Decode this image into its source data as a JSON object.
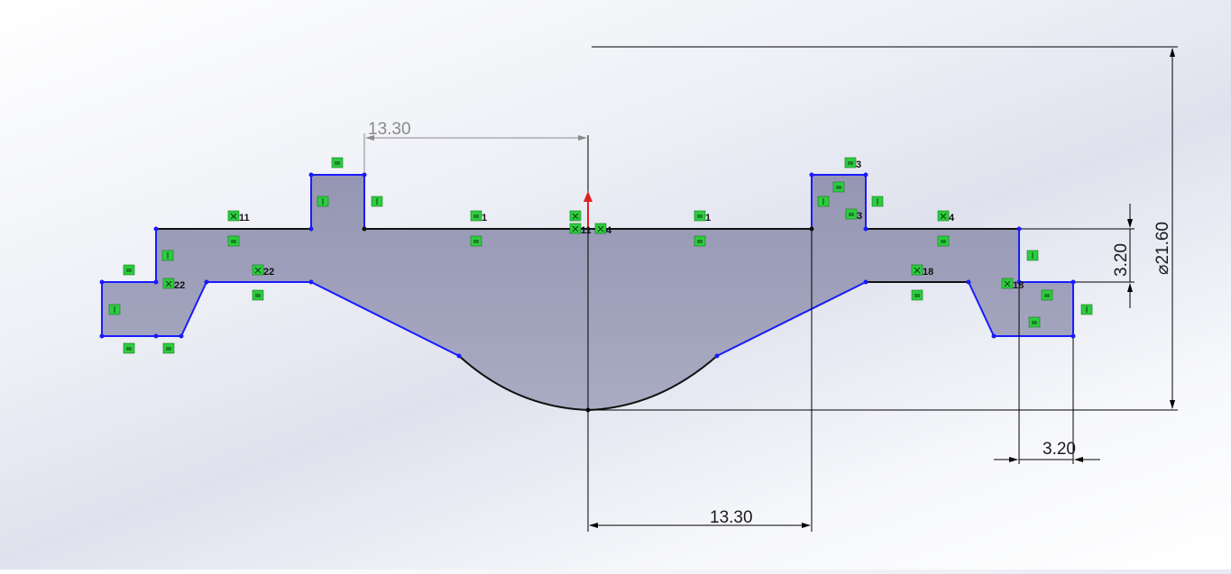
{
  "sketch": {
    "dimensions": {
      "top_horizontal": "13.30",
      "bottom_horizontal": "13.30",
      "vertical_step": "3.20",
      "bottom_step": "3.20",
      "diameter": "⌀21.60"
    },
    "relations": [
      {
        "symbol": "⊠",
        "label": "11"
      },
      {
        "symbol": "⊠",
        "label": "22"
      },
      {
        "symbol": "⊠",
        "label": "22"
      },
      {
        "symbol": "=",
        "label": "1"
      },
      {
        "symbol": "=",
        "label": "1"
      },
      {
        "symbol": "⊠",
        "label": "11"
      },
      {
        "symbol": "⊠",
        "label": "4"
      },
      {
        "symbol": "=",
        "label": "3"
      },
      {
        "symbol": "=",
        "label": "3"
      },
      {
        "symbol": "⊠",
        "label": "4"
      },
      {
        "symbol": "⊠",
        "label": "18"
      },
      {
        "symbol": "⊠",
        "label": "18"
      }
    ]
  },
  "colors": {
    "profile_fill": "#9ea1bb",
    "constraint_green": "#2ecc40",
    "blue_edge": "#1a1aff",
    "black_edge": "#111111",
    "dim_line": "#000000",
    "origin_arrow": "#e02020"
  }
}
